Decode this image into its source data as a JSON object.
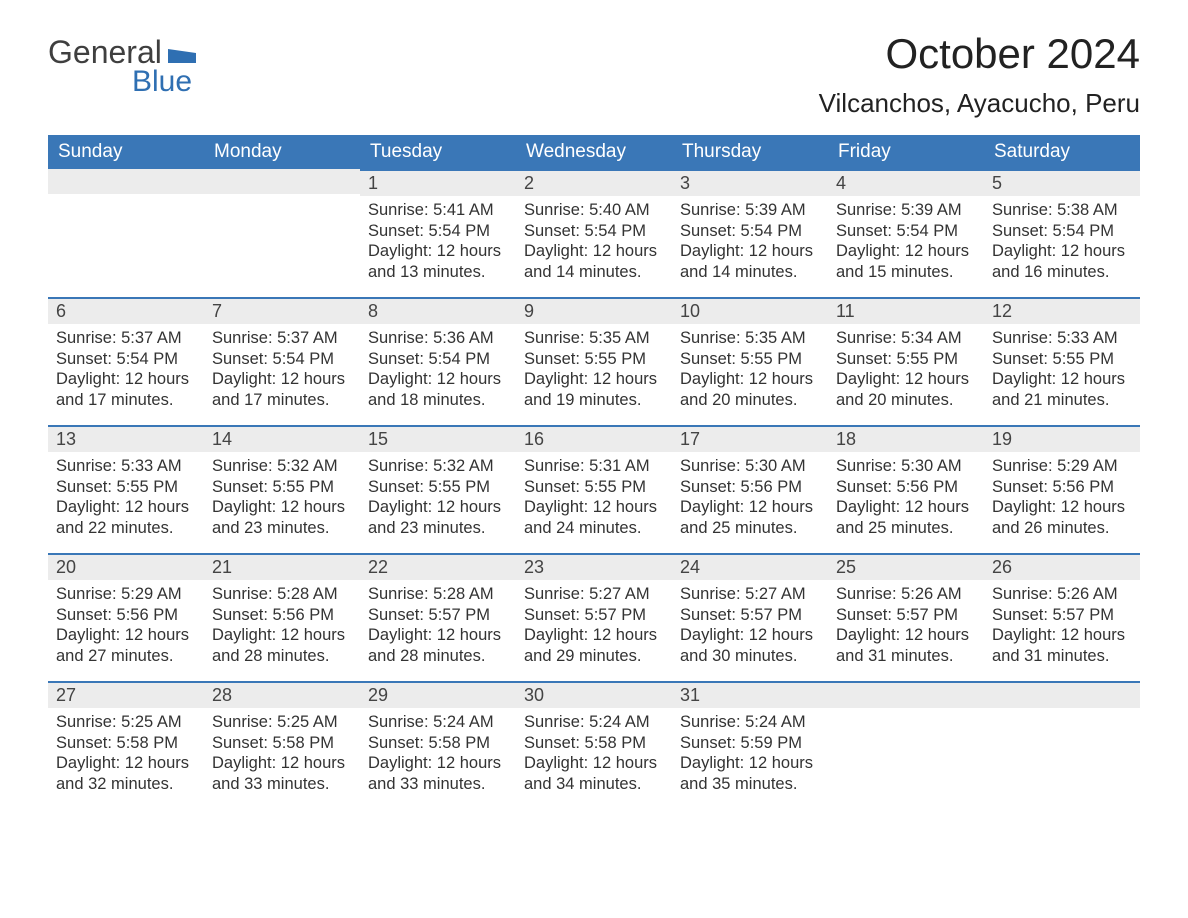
{
  "logo": {
    "text_general": "General",
    "text_blue": "Blue",
    "general_color": "#3f3f3f",
    "blue_color": "#2f6fb2",
    "flag_color": "#2f6fb2"
  },
  "header": {
    "month_title": "October 2024",
    "location": "Vilcanchos, Ayacucho, Peru",
    "title_color": "#222222"
  },
  "calendar": {
    "header_bg": "#3a77b7",
    "header_fg": "#ffffff",
    "daynum_bg": "#ececec",
    "daynum_border": "#3a77b7",
    "body_bg": "#ffffff",
    "text_color": "#333333",
    "columns": [
      "Sunday",
      "Monday",
      "Tuesday",
      "Wednesday",
      "Thursday",
      "Friday",
      "Saturday"
    ],
    "leading_blanks": 2,
    "days": [
      {
        "n": "1",
        "sunrise": "Sunrise: 5:41 AM",
        "sunset": "Sunset: 5:54 PM",
        "daylight": "Daylight: 12 hours and 13 minutes."
      },
      {
        "n": "2",
        "sunrise": "Sunrise: 5:40 AM",
        "sunset": "Sunset: 5:54 PM",
        "daylight": "Daylight: 12 hours and 14 minutes."
      },
      {
        "n": "3",
        "sunrise": "Sunrise: 5:39 AM",
        "sunset": "Sunset: 5:54 PM",
        "daylight": "Daylight: 12 hours and 14 minutes."
      },
      {
        "n": "4",
        "sunrise": "Sunrise: 5:39 AM",
        "sunset": "Sunset: 5:54 PM",
        "daylight": "Daylight: 12 hours and 15 minutes."
      },
      {
        "n": "5",
        "sunrise": "Sunrise: 5:38 AM",
        "sunset": "Sunset: 5:54 PM",
        "daylight": "Daylight: 12 hours and 16 minutes."
      },
      {
        "n": "6",
        "sunrise": "Sunrise: 5:37 AM",
        "sunset": "Sunset: 5:54 PM",
        "daylight": "Daylight: 12 hours and 17 minutes."
      },
      {
        "n": "7",
        "sunrise": "Sunrise: 5:37 AM",
        "sunset": "Sunset: 5:54 PM",
        "daylight": "Daylight: 12 hours and 17 minutes."
      },
      {
        "n": "8",
        "sunrise": "Sunrise: 5:36 AM",
        "sunset": "Sunset: 5:54 PM",
        "daylight": "Daylight: 12 hours and 18 minutes."
      },
      {
        "n": "9",
        "sunrise": "Sunrise: 5:35 AM",
        "sunset": "Sunset: 5:55 PM",
        "daylight": "Daylight: 12 hours and 19 minutes."
      },
      {
        "n": "10",
        "sunrise": "Sunrise: 5:35 AM",
        "sunset": "Sunset: 5:55 PM",
        "daylight": "Daylight: 12 hours and 20 minutes."
      },
      {
        "n": "11",
        "sunrise": "Sunrise: 5:34 AM",
        "sunset": "Sunset: 5:55 PM",
        "daylight": "Daylight: 12 hours and 20 minutes."
      },
      {
        "n": "12",
        "sunrise": "Sunrise: 5:33 AM",
        "sunset": "Sunset: 5:55 PM",
        "daylight": "Daylight: 12 hours and 21 minutes."
      },
      {
        "n": "13",
        "sunrise": "Sunrise: 5:33 AM",
        "sunset": "Sunset: 5:55 PM",
        "daylight": "Daylight: 12 hours and 22 minutes."
      },
      {
        "n": "14",
        "sunrise": "Sunrise: 5:32 AM",
        "sunset": "Sunset: 5:55 PM",
        "daylight": "Daylight: 12 hours and 23 minutes."
      },
      {
        "n": "15",
        "sunrise": "Sunrise: 5:32 AM",
        "sunset": "Sunset: 5:55 PM",
        "daylight": "Daylight: 12 hours and 23 minutes."
      },
      {
        "n": "16",
        "sunrise": "Sunrise: 5:31 AM",
        "sunset": "Sunset: 5:55 PM",
        "daylight": "Daylight: 12 hours and 24 minutes."
      },
      {
        "n": "17",
        "sunrise": "Sunrise: 5:30 AM",
        "sunset": "Sunset: 5:56 PM",
        "daylight": "Daylight: 12 hours and 25 minutes."
      },
      {
        "n": "18",
        "sunrise": "Sunrise: 5:30 AM",
        "sunset": "Sunset: 5:56 PM",
        "daylight": "Daylight: 12 hours and 25 minutes."
      },
      {
        "n": "19",
        "sunrise": "Sunrise: 5:29 AM",
        "sunset": "Sunset: 5:56 PM",
        "daylight": "Daylight: 12 hours and 26 minutes."
      },
      {
        "n": "20",
        "sunrise": "Sunrise: 5:29 AM",
        "sunset": "Sunset: 5:56 PM",
        "daylight": "Daylight: 12 hours and 27 minutes."
      },
      {
        "n": "21",
        "sunrise": "Sunrise: 5:28 AM",
        "sunset": "Sunset: 5:56 PM",
        "daylight": "Daylight: 12 hours and 28 minutes."
      },
      {
        "n": "22",
        "sunrise": "Sunrise: 5:28 AM",
        "sunset": "Sunset: 5:57 PM",
        "daylight": "Daylight: 12 hours and 28 minutes."
      },
      {
        "n": "23",
        "sunrise": "Sunrise: 5:27 AM",
        "sunset": "Sunset: 5:57 PM",
        "daylight": "Daylight: 12 hours and 29 minutes."
      },
      {
        "n": "24",
        "sunrise": "Sunrise: 5:27 AM",
        "sunset": "Sunset: 5:57 PM",
        "daylight": "Daylight: 12 hours and 30 minutes."
      },
      {
        "n": "25",
        "sunrise": "Sunrise: 5:26 AM",
        "sunset": "Sunset: 5:57 PM",
        "daylight": "Daylight: 12 hours and 31 minutes."
      },
      {
        "n": "26",
        "sunrise": "Sunrise: 5:26 AM",
        "sunset": "Sunset: 5:57 PM",
        "daylight": "Daylight: 12 hours and 31 minutes."
      },
      {
        "n": "27",
        "sunrise": "Sunrise: 5:25 AM",
        "sunset": "Sunset: 5:58 PM",
        "daylight": "Daylight: 12 hours and 32 minutes."
      },
      {
        "n": "28",
        "sunrise": "Sunrise: 5:25 AM",
        "sunset": "Sunset: 5:58 PM",
        "daylight": "Daylight: 12 hours and 33 minutes."
      },
      {
        "n": "29",
        "sunrise": "Sunrise: 5:24 AM",
        "sunset": "Sunset: 5:58 PM",
        "daylight": "Daylight: 12 hours and 33 minutes."
      },
      {
        "n": "30",
        "sunrise": "Sunrise: 5:24 AM",
        "sunset": "Sunset: 5:58 PM",
        "daylight": "Daylight: 12 hours and 34 minutes."
      },
      {
        "n": "31",
        "sunrise": "Sunrise: 5:24 AM",
        "sunset": "Sunset: 5:59 PM",
        "daylight": "Daylight: 12 hours and 35 minutes."
      }
    ]
  }
}
